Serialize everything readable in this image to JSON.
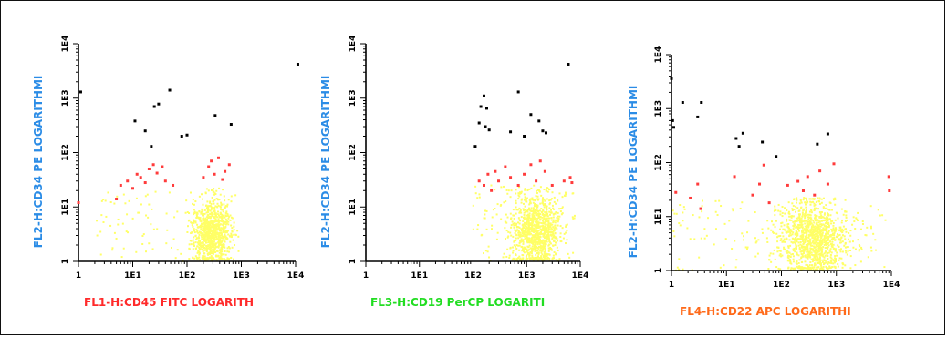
{
  "colors": {
    "dark": "#000000",
    "red": "#ff3b3b",
    "yellow": "#ffff66"
  },
  "chart_data": [
    {
      "type": "scatter",
      "title": "",
      "xlabel": "FL1-H:CD45 FITC LOGARITH",
      "ylabel": "FL2-H:CD34 PE LOGARITHMI",
      "xlabel_color": "#ff2a2a",
      "ylabel_color": "#2b8ce6",
      "x_scale": "log",
      "y_scale": "log",
      "xlim": [
        1,
        10000
      ],
      "ylim": [
        1,
        10000
      ],
      "x_ticks": [
        "1",
        "1E1",
        "1E2",
        "1E3",
        "1E4"
      ],
      "y_ticks": [
        "1",
        "1E1",
        "1E2",
        "1E3",
        "1E4"
      ],
      "series": [
        {
          "color": "#000000",
          "points": [
            [
              1.1,
              1300
            ],
            [
              11,
              380
            ],
            [
              17,
              250
            ],
            [
              22,
              130
            ],
            [
              25,
              700
            ],
            [
              30,
              780
            ],
            [
              48,
              1400
            ],
            [
              80,
              200
            ],
            [
              100,
              210
            ],
            [
              330,
              480
            ],
            [
              650,
              330
            ],
            [
              11000,
              4200
            ]
          ]
        },
        {
          "color": "#ff3b3b",
          "points": [
            [
              1,
              12
            ],
            [
              5,
              14
            ],
            [
              6,
              25
            ],
            [
              8,
              30
            ],
            [
              10,
              22
            ],
            [
              12,
              40
            ],
            [
              14,
              35
            ],
            [
              17,
              28
            ],
            [
              20,
              50
            ],
            [
              24,
              60
            ],
            [
              28,
              42
            ],
            [
              35,
              55
            ],
            [
              40,
              30
            ],
            [
              55,
              25
            ],
            [
              200,
              35
            ],
            [
              250,
              55
            ],
            [
              280,
              70
            ],
            [
              320,
              40
            ],
            [
              380,
              80
            ],
            [
              450,
              32
            ],
            [
              500,
              45
            ],
            [
              600,
              60
            ]
          ]
        },
        {
          "color": "#ffff66",
          "cloud": {
            "cx": 280,
            "cy": 3.5,
            "sx": 0.18,
            "sy": 0.32,
            "n": 900
          },
          "scatter": {
            "xmin": 2,
            "xmax": 900,
            "ymin": 1,
            "ymax": 20,
            "n": 90
          }
        }
      ]
    },
    {
      "type": "scatter",
      "title": "",
      "xlabel": "FL3-H:CD19 PerCP LOGARITI",
      "ylabel": "FL2-H:CD34 PE LOGARITHMI",
      "xlabel_color": "#22dd22",
      "ylabel_color": "#2b8ce6",
      "x_scale": "log",
      "y_scale": "log",
      "xlim": [
        1,
        10000
      ],
      "ylim": [
        1,
        10000
      ],
      "x_ticks": [
        "1",
        "1E1",
        "1E2",
        "1E3",
        "1E4"
      ],
      "y_ticks": [
        "1",
        "1E1",
        "1E2",
        "1E3",
        "1E4"
      ],
      "series": [
        {
          "color": "#000000",
          "points": [
            [
              110,
              130
            ],
            [
              130,
              350
            ],
            [
              140,
              700
            ],
            [
              160,
              1100
            ],
            [
              170,
              300
            ],
            [
              180,
              650
            ],
            [
              200,
              260
            ],
            [
              500,
              240
            ],
            [
              700,
              1300
            ],
            [
              900,
              200
            ],
            [
              1200,
              500
            ],
            [
              1700,
              380
            ],
            [
              2000,
              250
            ],
            [
              2300,
              230
            ],
            [
              6000,
              4200
            ]
          ]
        },
        {
          "color": "#ff3b3b",
          "points": [
            [
              130,
              30
            ],
            [
              160,
              25
            ],
            [
              190,
              40
            ],
            [
              220,
              20
            ],
            [
              260,
              45
            ],
            [
              300,
              30
            ],
            [
              400,
              55
            ],
            [
              500,
              35
            ],
            [
              700,
              25
            ],
            [
              900,
              40
            ],
            [
              1200,
              60
            ],
            [
              1500,
              30
            ],
            [
              1800,
              70
            ],
            [
              2200,
              45
            ],
            [
              3000,
              25
            ],
            [
              5000,
              30
            ],
            [
              6500,
              35
            ],
            [
              7000,
              28
            ]
          ]
        },
        {
          "color": "#ffff66",
          "cloud": {
            "cx": 1500,
            "cy": 3.5,
            "sx": 0.22,
            "sy": 0.35,
            "n": 1000
          },
          "scatter": {
            "xmin": 100,
            "xmax": 8000,
            "ymin": 1,
            "ymax": 25,
            "n": 120
          }
        }
      ]
    },
    {
      "type": "scatter",
      "title": "",
      "xlabel": "FL4-H:CD22 APC LOGARITHI",
      "ylabel": "FL2-H:CD34 PE LOGARITHMI",
      "xlabel_color": "#ff6a1a",
      "ylabel_color": "#2b8ce6",
      "x_scale": "log",
      "y_scale": "log",
      "xlim": [
        1,
        10000
      ],
      "ylim": [
        1,
        10000
      ],
      "x_ticks": [
        "1",
        "1E1",
        "1E2",
        "1E3",
        "1E4"
      ],
      "y_ticks": [
        "1",
        "1E1",
        "1E2",
        "1E3",
        "1E4"
      ],
      "series": [
        {
          "color": "#000000",
          "points": [
            [
              1,
              3600
            ],
            [
              1.05,
              600
            ],
            [
              1.1,
              450
            ],
            [
              1.6,
              1300
            ],
            [
              3,
              700
            ],
            [
              3.5,
              1300
            ],
            [
              15,
              280
            ],
            [
              17,
              200
            ],
            [
              20,
              350
            ],
            [
              45,
              240
            ],
            [
              80,
              130
            ],
            [
              450,
              220
            ],
            [
              700,
              340
            ]
          ]
        },
        {
          "color": "#ff3b3b",
          "points": [
            [
              1.2,
              28
            ],
            [
              2.2,
              22
            ],
            [
              3,
              40
            ],
            [
              3.4,
              14
            ],
            [
              14,
              55
            ],
            [
              30,
              25
            ],
            [
              40,
              40
            ],
            [
              48,
              90
            ],
            [
              60,
              18
            ],
            [
              130,
              38
            ],
            [
              200,
              45
            ],
            [
              250,
              30
            ],
            [
              300,
              55
            ],
            [
              400,
              25
            ],
            [
              500,
              70
            ],
            [
              700,
              40
            ],
            [
              900,
              95
            ],
            [
              9000,
              55
            ],
            [
              9200,
              30
            ]
          ]
        },
        {
          "color": "#ffff66",
          "cloud": {
            "cx": 380,
            "cy": 4,
            "sx": 0.3,
            "sy": 0.35,
            "n": 1100
          },
          "scatter": {
            "xmin": 1,
            "xmax": 9500,
            "ymin": 1,
            "ymax": 20,
            "n": 160
          }
        }
      ]
    }
  ]
}
